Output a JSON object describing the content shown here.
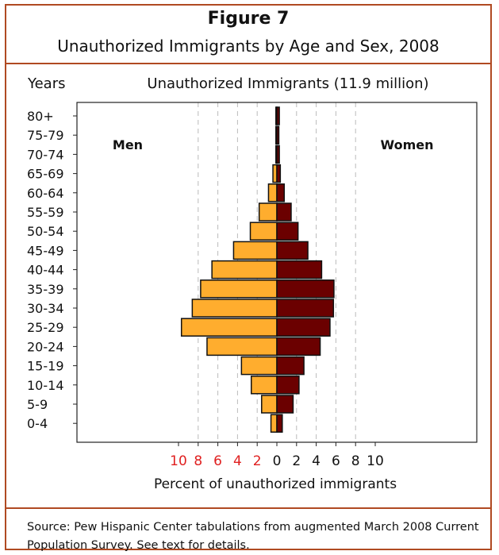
{
  "header": {
    "figure_number": "Figure 7",
    "title": "Unauthorized Immigrants by Age and Sex, 2008"
  },
  "source": "Source:  Pew Hispanic Center tabulations from augmented March 2008 Current Population Survey.  See text for details.",
  "colors": {
    "border": "#b04a22",
    "men": "#ffad2e",
    "women": "#6b0000",
    "left_tick_labels": "#e02020"
  },
  "chart_data": {
    "type": "bar",
    "orientation": "horizontal-population-pyramid",
    "title": "Unauthorized Immigrants (11.9 million)",
    "ylabel": "Years",
    "xlabel": "Percent of unauthorized immigrants",
    "xlim": [
      -10,
      10
    ],
    "x_ticks": [
      -10,
      -8,
      -6,
      -4,
      -2,
      0,
      2,
      4,
      6,
      8,
      10
    ],
    "x_tick_labels": [
      "10",
      "8",
      "6",
      "4",
      "2",
      "0",
      "2",
      "4",
      "6",
      "8",
      "10"
    ],
    "grid": "vertical dashed",
    "categories": [
      "80+",
      "75-79",
      "70-74",
      "65-69",
      "60-64",
      "55-59",
      "50-54",
      "45-49",
      "40-44",
      "35-39",
      "30-34",
      "25-29",
      "20-24",
      "15-19",
      "10-14",
      "5-9",
      "0-4"
    ],
    "series": [
      {
        "name": "Men",
        "values": [
          0.1,
          0.1,
          0.1,
          0.4,
          0.85,
          1.8,
          2.7,
          4.4,
          6.6,
          7.75,
          8.6,
          9.7,
          7.1,
          3.6,
          2.6,
          1.55,
          0.6
        ]
      },
      {
        "name": "Women",
        "values": [
          0.25,
          0.2,
          0.25,
          0.35,
          0.75,
          1.45,
          2.15,
          3.15,
          4.55,
          5.8,
          5.75,
          5.4,
          4.4,
          2.75,
          2.25,
          1.65,
          0.55
        ]
      }
    ]
  }
}
